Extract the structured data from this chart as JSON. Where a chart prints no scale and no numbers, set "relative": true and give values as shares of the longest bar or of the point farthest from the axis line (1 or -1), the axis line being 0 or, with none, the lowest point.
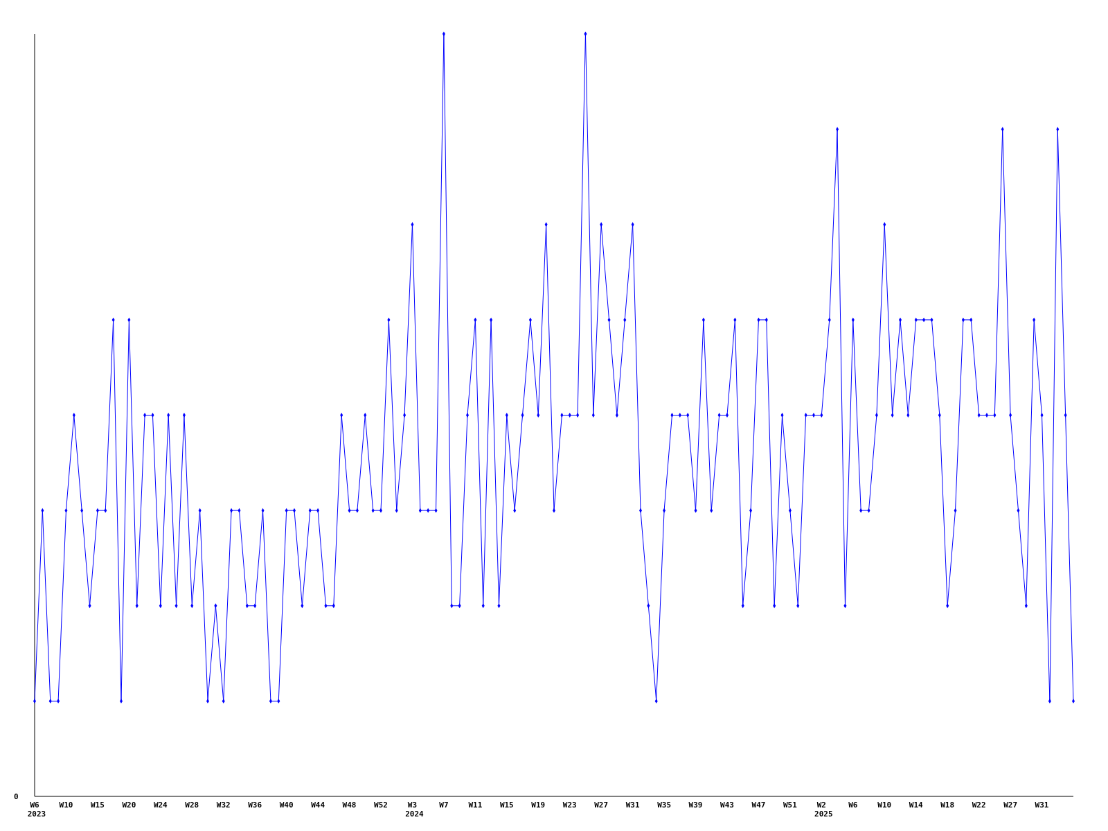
{
  "chart_data": {
    "type": "line",
    "relative": true,
    "marker": "diamond",
    "grid": false,
    "categories": [
      "W6",
      null,
      null,
      null,
      "W10",
      null,
      null,
      null,
      "W15",
      null,
      null,
      null,
      "W20",
      null,
      null,
      null,
      "W24",
      null,
      null,
      null,
      "W28",
      null,
      null,
      null,
      "W32",
      null,
      null,
      null,
      "W36",
      null,
      null,
      null,
      "W40",
      null,
      null,
      null,
      "W44",
      null,
      null,
      null,
      "W48",
      null,
      null,
      null,
      "W52",
      null,
      null,
      null,
      "W3",
      null,
      null,
      null,
      "W7",
      null,
      null,
      null,
      "W11",
      null,
      null,
      null,
      "W15",
      null,
      null,
      null,
      "W19",
      null,
      null,
      null,
      "W23",
      null,
      null,
      null,
      "W27",
      null,
      null,
      null,
      "W31",
      null,
      null,
      null,
      "W35",
      null,
      null,
      null,
      "W39",
      null,
      null,
      null,
      "W43",
      null,
      null,
      null,
      "W47",
      null,
      null,
      null,
      "W51",
      null,
      null,
      null,
      "W2",
      null,
      null,
      null,
      "W6",
      null,
      null,
      null,
      "W10",
      null,
      null,
      null,
      "W14",
      null,
      null,
      null,
      "W18",
      null,
      null,
      null,
      "W22",
      null,
      null,
      null,
      "W27",
      null,
      null,
      null,
      "W31",
      null,
      null,
      null,
      null
    ],
    "series": [
      {
        "color": "#0000ff",
        "values": [
          0.125,
          0.375,
          0.125,
          0.125,
          0.375,
          0.5,
          0.375,
          0.25,
          0.375,
          0.375,
          0.625,
          0.125,
          0.625,
          0.25,
          0.5,
          0.5,
          0.25,
          0.5,
          0.25,
          0.5,
          0.25,
          0.375,
          0.125,
          0.25,
          0.125,
          0.375,
          0.375,
          0.25,
          0.25,
          0.375,
          0.125,
          0.125,
          0.375,
          0.375,
          0.25,
          0.375,
          0.375,
          0.25,
          0.25,
          0.5,
          0.375,
          0.375,
          0.5,
          0.375,
          0.375,
          0.625,
          0.375,
          0.5,
          0.75,
          0.375,
          0.375,
          0.375,
          1,
          0.25,
          0.25,
          0.5,
          0.625,
          0.25,
          0.625,
          0.25,
          0.5,
          0.375,
          0.5,
          0.625,
          0.5,
          0.75,
          0.375,
          0.5,
          0.5,
          0.5,
          1,
          0.5,
          0.75,
          0.625,
          0.5,
          0.625,
          0.75,
          0.375,
          0.25,
          0.125,
          0.375,
          0.5,
          0.5,
          0.5,
          0.375,
          0.625,
          0.375,
          0.5,
          0.5,
          0.625,
          0.25,
          0.375,
          0.625,
          0.625,
          0.25,
          0.5,
          0.375,
          0.25,
          0.5,
          0.5,
          0.5,
          0.625,
          0.875,
          0.25,
          0.625,
          0.375,
          0.375,
          0.5,
          0.75,
          0.5,
          0.625,
          0.5,
          0.625,
          0.625,
          0.625,
          0.5,
          0.25,
          0.375,
          0.625,
          0.625,
          0.5,
          0.5,
          0.5,
          0.875,
          0.5,
          0.375,
          0.25,
          0.625,
          0.5,
          0.125,
          0.875,
          0.5,
          0.125
        ]
      }
    ],
    "annotations": [
      "0",
      "2023",
      "2024",
      "2025"
    ]
  }
}
